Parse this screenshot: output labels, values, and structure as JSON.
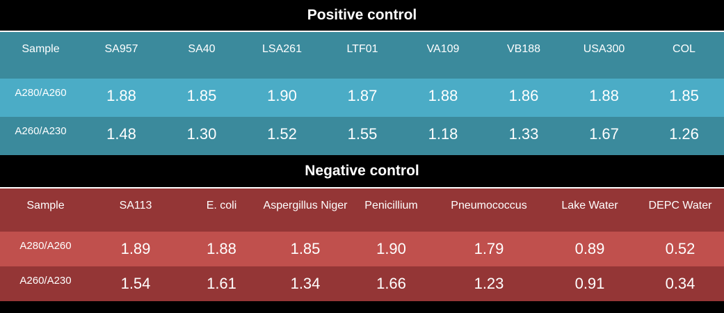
{
  "positive": {
    "title": "Positive control",
    "header": [
      "Sample",
      "SA957",
      "SA40",
      "LSA261",
      "LTF01",
      "VA109",
      "VB188",
      "USA300",
      "COL"
    ],
    "rows": [
      {
        "label": "A280/A260",
        "values": [
          "1.88",
          "1.85",
          "1.90",
          "1.87",
          "1.88",
          "1.86",
          "1.88",
          "1.85"
        ]
      },
      {
        "label": "A260/A230",
        "values": [
          "1.48",
          "1.30",
          "1.52",
          "1.55",
          "1.18",
          "1.33",
          "1.67",
          "1.26"
        ]
      }
    ]
  },
  "negative": {
    "title": "Negative control",
    "header": [
      "Sample",
      "SA113",
      "E. coli",
      "Aspergillus Niger",
      "Penicillium",
      "Pneumococcus",
      "Lake Water",
      "DEPC Water"
    ],
    "rows": [
      {
        "label": "A280/A260",
        "values": [
          "1.89",
          "1.88",
          "1.85",
          "1.90",
          "1.79",
          "0.89",
          "0.52"
        ]
      },
      {
        "label": "A260/A230",
        "values": [
          "1.54",
          "1.61",
          "1.34",
          "1.66",
          "1.23",
          "0.91",
          "0.34"
        ]
      }
    ]
  }
}
